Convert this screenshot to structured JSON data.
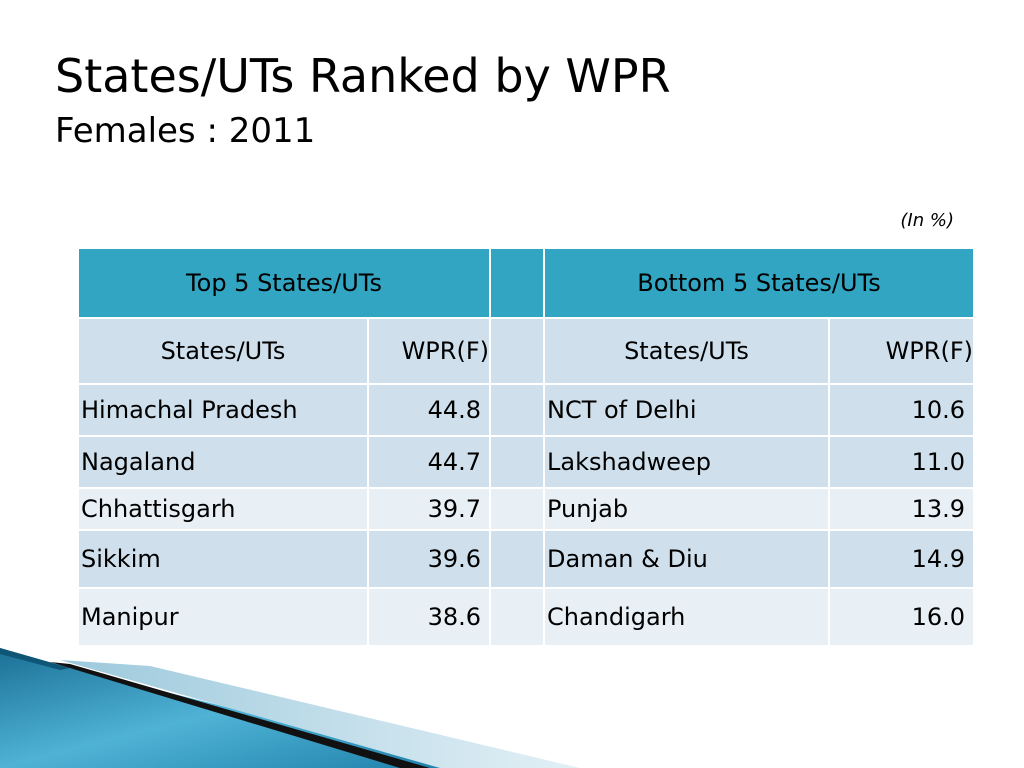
{
  "slide": {
    "title": "States/UTs Ranked by WPR",
    "subtitle": "Females : 2011",
    "unit_note": "(In %)"
  },
  "table": {
    "top_header": "Top 5 States/UTs",
    "bottom_header": "Bottom 5 States/UTs",
    "col_state": "States/UTs",
    "col_wpr": "WPR(F)",
    "top": [
      {
        "state": "Himachal Pradesh",
        "wpr": "44.8"
      },
      {
        "state": "Nagaland",
        "wpr": "44.7"
      },
      {
        "state": "Chhattisgarh",
        "wpr": "39.7"
      },
      {
        "state": "Sikkim",
        "wpr": "39.6"
      },
      {
        "state": "Manipur",
        "wpr": "38.6"
      }
    ],
    "bottom": [
      {
        "state": "NCT of Delhi",
        "wpr": "10.6"
      },
      {
        "state": "Lakshadweep",
        "wpr": "11.0"
      },
      {
        "state": "Punjab",
        "wpr": "13.9"
      },
      {
        "state": "Daman & Diu",
        "wpr": "14.9"
      },
      {
        "state": "Chandigarh",
        "wpr": "16.0"
      }
    ]
  },
  "colors": {
    "header_fill": "#31a5c2",
    "row_dark": "#cfe0ec",
    "row_light": "#e8eff5"
  }
}
